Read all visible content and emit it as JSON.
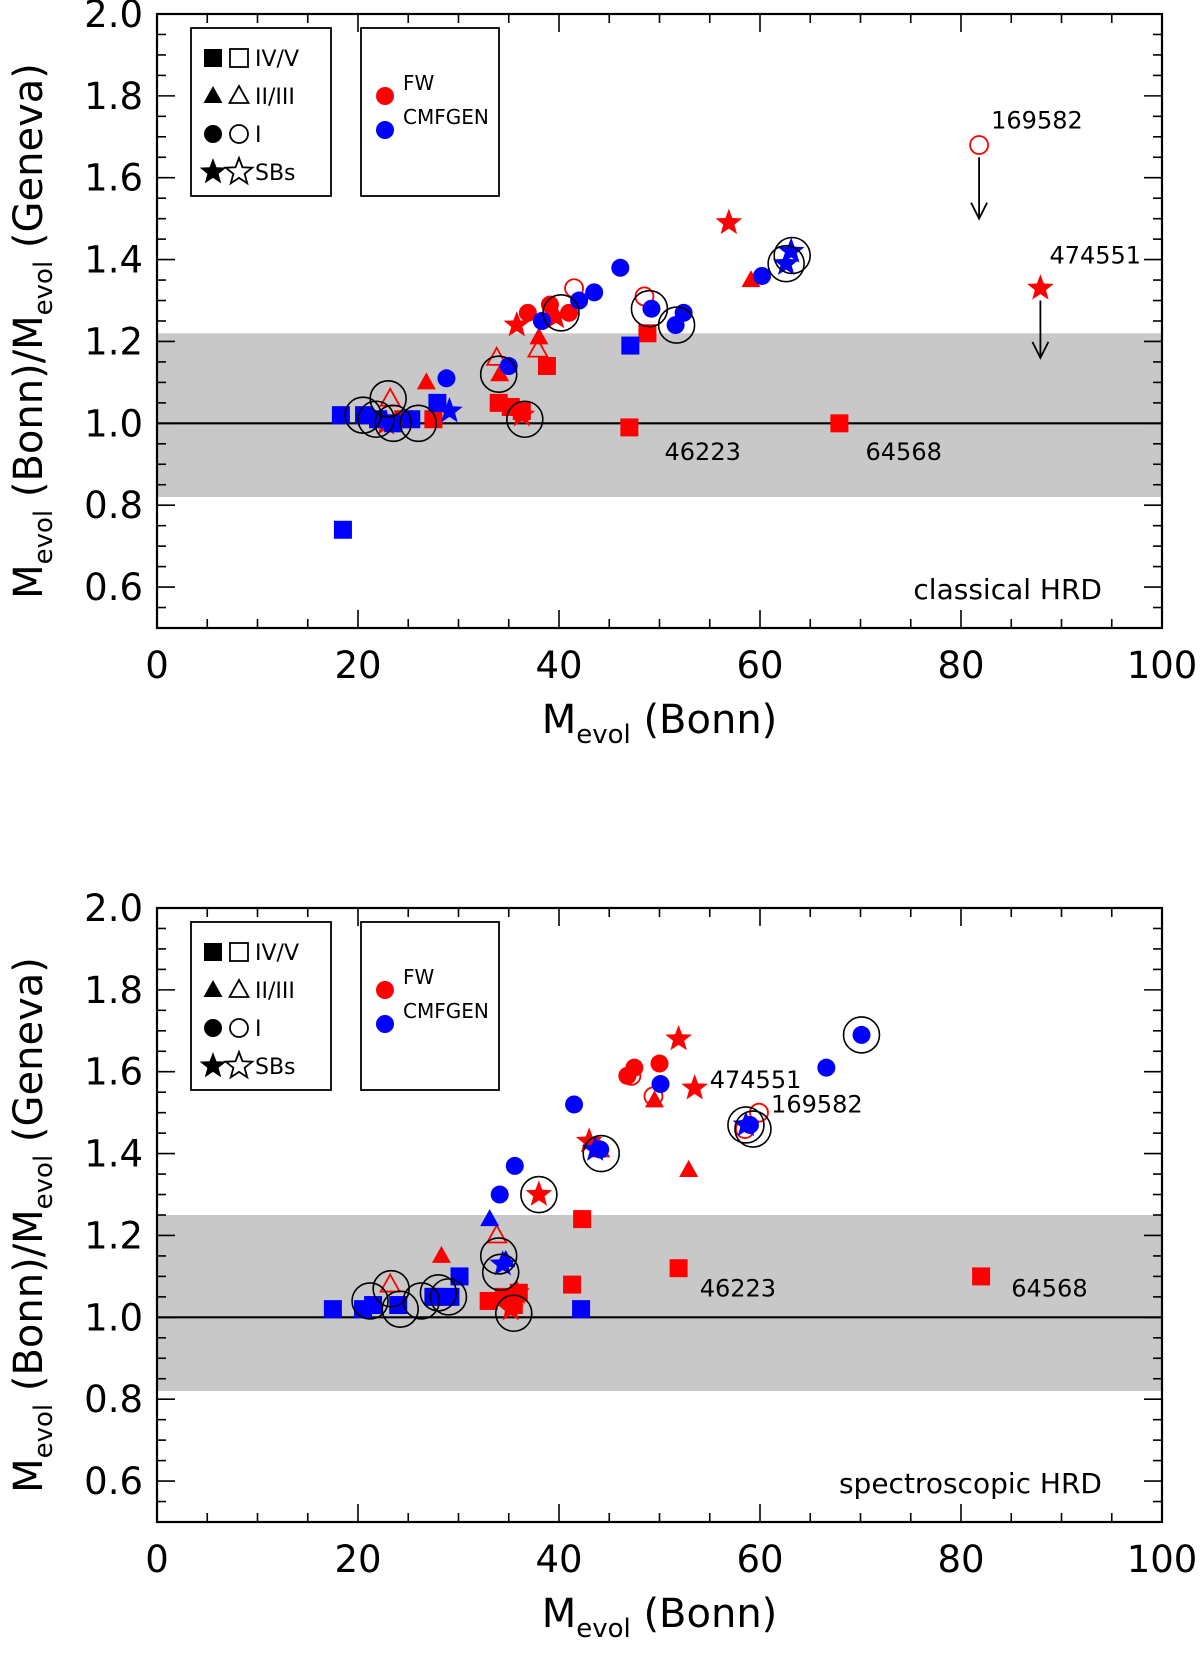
{
  "legend": {
    "shapes": [
      {
        "symbol": "square",
        "label": "IV/V"
      },
      {
        "symbol": "triangle",
        "label": "II/III"
      },
      {
        "symbol": "circle",
        "label": "I"
      },
      {
        "symbol": "star",
        "label": "SBs"
      }
    ],
    "methods": [
      {
        "label": "FW",
        "color": "#ff0000"
      },
      {
        "label": "CMFGEN",
        "color": "#0000ff"
      }
    ]
  },
  "chart_data": [
    {
      "type": "scatter",
      "panel_label": "classical HRD",
      "xlabel": "M_evol (Bonn)",
      "ylabel": "M_evol (Bonn)/M_evol (Geneva)",
      "xlim": [
        0,
        100
      ],
      "ylim": [
        0.5,
        2.0
      ],
      "xticks": [
        "0",
        "20",
        "40",
        "60",
        "80",
        "100"
      ],
      "yticks": [
        "0.6",
        "0.8",
        "1.0",
        "1.2",
        "1.4",
        "1.6",
        "1.8",
        "2.0"
      ],
      "reference_line": 1.0,
      "band": [
        0.82,
        1.22
      ],
      "series": [
        {
          "name": "FW",
          "color": "#ff0000",
          "points": [
            {
              "x": 34.0,
              "y": 1.05,
              "s": "square",
              "f": true
            },
            {
              "x": 35.2,
              "y": 1.04,
              "s": "square",
              "f": true
            },
            {
              "x": 36.3,
              "y": 1.03,
              "s": "square",
              "f": true
            },
            {
              "x": 38.8,
              "y": 1.14,
              "s": "square",
              "f": true
            },
            {
              "x": 47.0,
              "y": 0.99,
              "s": "square",
              "f": true
            },
            {
              "x": 67.9,
              "y": 1.0,
              "s": "square",
              "f": true
            },
            {
              "x": 48.8,
              "y": 1.22,
              "s": "square",
              "f": true
            },
            {
              "x": 27.5,
              "y": 1.01,
              "s": "square",
              "f": true
            },
            {
              "x": 24.5,
              "y": 1.01,
              "s": "square",
              "f": true
            },
            {
              "x": 26.8,
              "y": 1.1,
              "s": "triangle",
              "f": true
            },
            {
              "x": 34.1,
              "y": 1.12,
              "s": "triangle",
              "f": true
            },
            {
              "x": 38.0,
              "y": 1.21,
              "s": "triangle",
              "f": true
            },
            {
              "x": 59.1,
              "y": 1.35,
              "s": "triangle",
              "f": true
            },
            {
              "x": 23.2,
              "y": 1.06,
              "s": "triangle",
              "f": false
            },
            {
              "x": 33.8,
              "y": 1.16,
              "s": "triangle",
              "f": false
            },
            {
              "x": 37.9,
              "y": 1.18,
              "s": "triangle",
              "f": false
            },
            {
              "x": 36.9,
              "y": 1.27,
              "s": "circle",
              "f": true
            },
            {
              "x": 39.1,
              "y": 1.29,
              "s": "circle",
              "f": true
            },
            {
              "x": 41.0,
              "y": 1.27,
              "s": "circle",
              "f": true
            },
            {
              "x": 41.5,
              "y": 1.33,
              "s": "circle",
              "f": false
            },
            {
              "x": 48.5,
              "y": 1.31,
              "s": "circle",
              "f": false
            },
            {
              "x": 81.8,
              "y": 1.68,
              "s": "circle",
              "f": false
            },
            {
              "x": 35.8,
              "y": 1.24,
              "s": "star",
              "f": true
            },
            {
              "x": 39.7,
              "y": 1.26,
              "s": "star",
              "f": true
            },
            {
              "x": 56.9,
              "y": 1.49,
              "s": "star",
              "f": true
            },
            {
              "x": 87.9,
              "y": 1.33,
              "s": "star",
              "f": true
            },
            {
              "x": 36.3,
              "y": 1.02,
              "s": "star",
              "f": true
            },
            {
              "x": 22.8,
              "y": 1.0,
              "s": "star",
              "f": true
            }
          ]
        },
        {
          "name": "CMFGEN",
          "color": "#0000ff",
          "points": [
            {
              "x": 18.3,
              "y": 1.02,
              "s": "square",
              "f": true
            },
            {
              "x": 18.5,
              "y": 0.74,
              "s": "square",
              "f": true
            },
            {
              "x": 20.6,
              "y": 1.02,
              "s": "square",
              "f": true
            },
            {
              "x": 22.0,
              "y": 1.01,
              "s": "square",
              "f": true
            },
            {
              "x": 23.5,
              "y": 1.0,
              "s": "square",
              "f": true
            },
            {
              "x": 25.3,
              "y": 1.01,
              "s": "square",
              "f": true
            },
            {
              "x": 27.9,
              "y": 1.05,
              "s": "square",
              "f": true
            },
            {
              "x": 47.1,
              "y": 1.19,
              "s": "square",
              "f": true
            },
            {
              "x": 28.8,
              "y": 1.11,
              "s": "circle",
              "f": true
            },
            {
              "x": 35.0,
              "y": 1.14,
              "s": "circle",
              "f": true
            },
            {
              "x": 38.3,
              "y": 1.25,
              "s": "circle",
              "f": true
            },
            {
              "x": 42.0,
              "y": 1.3,
              "s": "circle",
              "f": true
            },
            {
              "x": 43.5,
              "y": 1.32,
              "s": "circle",
              "f": true
            },
            {
              "x": 46.1,
              "y": 1.38,
              "s": "circle",
              "f": true
            },
            {
              "x": 49.2,
              "y": 1.28,
              "s": "circle",
              "f": true
            },
            {
              "x": 51.6,
              "y": 1.24,
              "s": "circle",
              "f": true
            },
            {
              "x": 52.4,
              "y": 1.27,
              "s": "circle",
              "f": true
            },
            {
              "x": 60.2,
              "y": 1.36,
              "s": "circle",
              "f": true
            },
            {
              "x": 62.6,
              "y": 1.39,
              "s": "star",
              "f": true
            },
            {
              "x": 63.1,
              "y": 1.42,
              "s": "star",
              "f": true
            },
            {
              "x": 29.1,
              "y": 1.03,
              "s": "star",
              "f": true
            }
          ]
        }
      ],
      "encircled": [
        {
          "x": 20.5,
          "y": 1.02
        },
        {
          "x": 21.8,
          "y": 1.01
        },
        {
          "x": 23.0,
          "y": 1.06
        },
        {
          "x": 23.5,
          "y": 1.0
        },
        {
          "x": 26.0,
          "y": 1.0
        },
        {
          "x": 34.0,
          "y": 1.12
        },
        {
          "x": 36.6,
          "y": 1.01
        },
        {
          "x": 40.2,
          "y": 1.27
        },
        {
          "x": 49.0,
          "y": 1.28
        },
        {
          "x": 51.7,
          "y": 1.24
        },
        {
          "x": 62.6,
          "y": 1.39
        },
        {
          "x": 63.2,
          "y": 1.41
        }
      ],
      "annotations": [
        {
          "text": "169582",
          "x": 83.0,
          "y": 1.74
        },
        {
          "text": "474551",
          "x": 88.8,
          "y": 1.41
        },
        {
          "text": "46223",
          "x": 50.5,
          "y": 0.93
        },
        {
          "text": "64568",
          "x": 70.5,
          "y": 0.93
        }
      ],
      "arrows": [
        {
          "x": 81.8,
          "y_from": 1.65,
          "y_to": 1.5
        },
        {
          "x": 87.9,
          "y_from": 1.3,
          "y_to": 1.16
        }
      ]
    },
    {
      "type": "scatter",
      "panel_label": "spectroscopic HRD",
      "xlabel": "M_evol (Bonn)",
      "ylabel": "M_evol (Bonn)/M_evol (Geneva)",
      "xlim": [
        0,
        100
      ],
      "ylim": [
        0.5,
        2.0
      ],
      "xticks": [
        "0",
        "20",
        "40",
        "60",
        "80",
        "100"
      ],
      "yticks": [
        "0.6",
        "0.8",
        "1.0",
        "1.2",
        "1.4",
        "1.6",
        "1.8",
        "2.0"
      ],
      "reference_line": 1.0,
      "band": [
        0.82,
        1.25
      ],
      "series": [
        {
          "name": "FW",
          "color": "#ff0000",
          "points": [
            {
              "x": 33.0,
              "y": 1.04,
              "s": "square",
              "f": true
            },
            {
              "x": 34.5,
              "y": 1.05,
              "s": "square",
              "f": true
            },
            {
              "x": 35.5,
              "y": 1.03,
              "s": "square",
              "f": true
            },
            {
              "x": 36.0,
              "y": 1.06,
              "s": "square",
              "f": true
            },
            {
              "x": 41.3,
              "y": 1.08,
              "s": "square",
              "f": true
            },
            {
              "x": 42.3,
              "y": 1.24,
              "s": "square",
              "f": true
            },
            {
              "x": 51.9,
              "y": 1.12,
              "s": "square",
              "f": true
            },
            {
              "x": 82.0,
              "y": 1.1,
              "s": "square",
              "f": true
            },
            {
              "x": 27.8,
              "y": 1.05,
              "s": "square",
              "f": true
            },
            {
              "x": 28.3,
              "y": 1.15,
              "s": "triangle",
              "f": true
            },
            {
              "x": 49.5,
              "y": 1.53,
              "s": "triangle",
              "f": true
            },
            {
              "x": 52.9,
              "y": 1.36,
              "s": "triangle",
              "f": true
            },
            {
              "x": 23.2,
              "y": 1.08,
              "s": "triangle",
              "f": false
            },
            {
              "x": 33.8,
              "y": 1.2,
              "s": "triangle",
              "f": false
            },
            {
              "x": 44.0,
              "y": 1.41,
              "s": "triangle",
              "f": false
            },
            {
              "x": 46.8,
              "y": 1.59,
              "s": "circle",
              "f": true
            },
            {
              "x": 47.5,
              "y": 1.61,
              "s": "circle",
              "f": true
            },
            {
              "x": 50.0,
              "y": 1.62,
              "s": "circle",
              "f": true
            },
            {
              "x": 47.2,
              "y": 1.59,
              "s": "circle",
              "f": false
            },
            {
              "x": 49.4,
              "y": 1.54,
              "s": "circle",
              "f": false
            },
            {
              "x": 59.9,
              "y": 1.5,
              "s": "circle",
              "f": false
            },
            {
              "x": 58.5,
              "y": 1.46,
              "s": "circle",
              "f": false
            },
            {
              "x": 38.0,
              "y": 1.3,
              "s": "star",
              "f": true
            },
            {
              "x": 43.0,
              "y": 1.43,
              "s": "star",
              "f": true
            },
            {
              "x": 51.9,
              "y": 1.68,
              "s": "star",
              "f": true
            },
            {
              "x": 53.5,
              "y": 1.56,
              "s": "star",
              "f": true
            },
            {
              "x": 35.2,
              "y": 1.02,
              "s": "star",
              "f": true
            },
            {
              "x": 35.8,
              "y": 1.06,
              "s": "star",
              "f": true
            }
          ]
        },
        {
          "name": "CMFGEN",
          "color": "#0000ff",
          "points": [
            {
              "x": 17.5,
              "y": 1.02,
              "s": "square",
              "f": true
            },
            {
              "x": 20.5,
              "y": 1.02,
              "s": "square",
              "f": true
            },
            {
              "x": 21.5,
              "y": 1.03,
              "s": "square",
              "f": true
            },
            {
              "x": 24.0,
              "y": 1.03,
              "s": "square",
              "f": true
            },
            {
              "x": 27.5,
              "y": 1.05,
              "s": "square",
              "f": true
            },
            {
              "x": 29.2,
              "y": 1.05,
              "s": "square",
              "f": true
            },
            {
              "x": 30.1,
              "y": 1.1,
              "s": "square",
              "f": true
            },
            {
              "x": 42.2,
              "y": 1.02,
              "s": "square",
              "f": true
            },
            {
              "x": 33.1,
              "y": 1.24,
              "s": "triangle",
              "f": true
            },
            {
              "x": 34.7,
              "y": 1.14,
              "s": "triangle",
              "f": true
            },
            {
              "x": 34.1,
              "y": 1.3,
              "s": "circle",
              "f": true
            },
            {
              "x": 35.6,
              "y": 1.37,
              "s": "circle",
              "f": true
            },
            {
              "x": 41.5,
              "y": 1.52,
              "s": "circle",
              "f": true
            },
            {
              "x": 44.1,
              "y": 1.41,
              "s": "circle",
              "f": true
            },
            {
              "x": 50.1,
              "y": 1.57,
              "s": "circle",
              "f": true
            },
            {
              "x": 59.0,
              "y": 1.47,
              "s": "circle",
              "f": true
            },
            {
              "x": 66.6,
              "y": 1.61,
              "s": "circle",
              "f": true
            },
            {
              "x": 70.1,
              "y": 1.69,
              "s": "circle",
              "f": true
            },
            {
              "x": 58.6,
              "y": 1.47,
              "s": "star",
              "f": true
            },
            {
              "x": 43.6,
              "y": 1.41,
              "s": "star",
              "f": true
            },
            {
              "x": 34.4,
              "y": 1.13,
              "s": "star",
              "f": true
            }
          ]
        }
      ],
      "encircled": [
        {
          "x": 21.2,
          "y": 1.04
        },
        {
          "x": 23.3,
          "y": 1.07
        },
        {
          "x": 24.2,
          "y": 1.02
        },
        {
          "x": 26.3,
          "y": 1.04
        },
        {
          "x": 28.0,
          "y": 1.06
        },
        {
          "x": 29.0,
          "y": 1.05
        },
        {
          "x": 34.0,
          "y": 1.15
        },
        {
          "x": 34.2,
          "y": 1.11
        },
        {
          "x": 35.5,
          "y": 1.01
        },
        {
          "x": 38.0,
          "y": 1.3
        },
        {
          "x": 44.2,
          "y": 1.4
        },
        {
          "x": 58.6,
          "y": 1.47
        },
        {
          "x": 59.3,
          "y": 1.46
        },
        {
          "x": 70.1,
          "y": 1.69
        }
      ],
      "annotations": [
        {
          "text": "474551",
          "x": 55.0,
          "y": 1.58
        },
        {
          "text": "169582",
          "x": 61.1,
          "y": 1.52
        },
        {
          "text": "46223",
          "x": 54.0,
          "y": 1.07
        },
        {
          "text": "64568",
          "x": 85.0,
          "y": 1.07
        }
      ],
      "arrows": []
    }
  ]
}
